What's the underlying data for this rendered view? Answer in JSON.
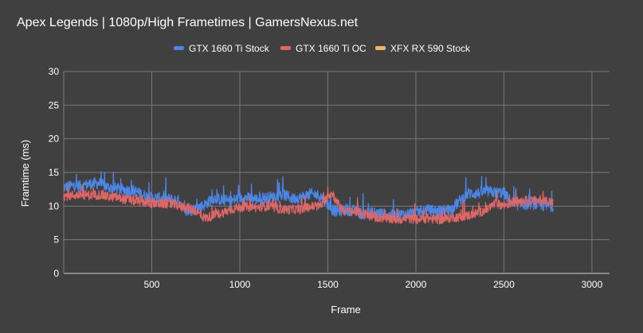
{
  "chart_data": {
    "type": "line",
    "title": "Apex Legends | 1080p/High Frametimes | GamersNexus.net",
    "xlabel": "Frame",
    "ylabel": "Framtime (ms)",
    "xlim": [
      0,
      3100
    ],
    "ylim": [
      0,
      30
    ],
    "x_ticks": [
      500,
      1000,
      1500,
      2000,
      2500,
      3000
    ],
    "y_ticks": [
      0,
      5,
      10,
      15,
      20,
      25,
      30
    ],
    "grid": true,
    "legend_position": "top",
    "background": "#404040",
    "series": [
      {
        "name": "GTX 1660 Ti Stock",
        "color": "#4a86e8",
        "noise": 0.85,
        "spike_height": 2.5,
        "points": [
          [
            0,
            12.8
          ],
          [
            50,
            13.0
          ],
          [
            100,
            13.0
          ],
          [
            150,
            13.3
          ],
          [
            200,
            13.4
          ],
          [
            250,
            12.8
          ],
          [
            300,
            12.6
          ],
          [
            350,
            12.4
          ],
          [
            400,
            12.3
          ],
          [
            450,
            11.7
          ],
          [
            500,
            11.2
          ],
          [
            550,
            11.2
          ],
          [
            600,
            11.0
          ],
          [
            650,
            10.8
          ],
          [
            680,
            9.6
          ],
          [
            700,
            9.0
          ],
          [
            720,
            9.4
          ],
          [
            750,
            9.6
          ],
          [
            800,
            10.2
          ],
          [
            850,
            11.2
          ],
          [
            900,
            10.9
          ],
          [
            950,
            10.7
          ],
          [
            1000,
            11.3
          ],
          [
            1050,
            11.2
          ],
          [
            1100,
            11.0
          ],
          [
            1150,
            11.2
          ],
          [
            1200,
            11.4
          ],
          [
            1250,
            11.7
          ],
          [
            1300,
            11.1
          ],
          [
            1350,
            11.3
          ],
          [
            1400,
            11.8
          ],
          [
            1450,
            11.6
          ],
          [
            1480,
            11.0
          ],
          [
            1500,
            10.3
          ],
          [
            1520,
            9.6
          ],
          [
            1550,
            9.2
          ],
          [
            1600,
            9.5
          ],
          [
            1650,
            9.3
          ],
          [
            1700,
            8.8
          ],
          [
            1750,
            9.0
          ],
          [
            1800,
            8.9
          ],
          [
            1850,
            8.6
          ],
          [
            1900,
            8.7
          ],
          [
            1950,
            8.8
          ],
          [
            2000,
            9.0
          ],
          [
            2050,
            9.4
          ],
          [
            2100,
            9.3
          ],
          [
            2150,
            9.3
          ],
          [
            2200,
            9.5
          ],
          [
            2250,
            10.8
          ],
          [
            2300,
            11.9
          ],
          [
            2350,
            11.9
          ],
          [
            2400,
            12.2
          ],
          [
            2450,
            12.0
          ],
          [
            2500,
            12.0
          ],
          [
            2550,
            10.3
          ],
          [
            2600,
            10.2
          ],
          [
            2650,
            10.4
          ],
          [
            2700,
            10.2
          ],
          [
            2750,
            10.0
          ],
          [
            2780,
            10.0
          ]
        ]
      },
      {
        "name": "GTX 1660 Ti OC",
        "color": "#e06666",
        "noise": 0.7,
        "spike_height": 1.8,
        "points": [
          [
            0,
            11.5
          ],
          [
            50,
            11.6
          ],
          [
            100,
            11.7
          ],
          [
            150,
            11.6
          ],
          [
            200,
            11.7
          ],
          [
            250,
            11.4
          ],
          [
            300,
            11.3
          ],
          [
            350,
            11.0
          ],
          [
            400,
            10.8
          ],
          [
            450,
            10.6
          ],
          [
            500,
            10.4
          ],
          [
            550,
            10.4
          ],
          [
            600,
            10.3
          ],
          [
            650,
            10.1
          ],
          [
            700,
            9.8
          ],
          [
            750,
            9.3
          ],
          [
            800,
            8.2
          ],
          [
            850,
            8.6
          ],
          [
            900,
            9.0
          ],
          [
            950,
            9.5
          ],
          [
            1000,
            9.8
          ],
          [
            1050,
            9.9
          ],
          [
            1100,
            9.8
          ],
          [
            1150,
            10.0
          ],
          [
            1200,
            9.7
          ],
          [
            1250,
            9.5
          ],
          [
            1300,
            9.5
          ],
          [
            1350,
            9.6
          ],
          [
            1400,
            9.9
          ],
          [
            1450,
            10.0
          ],
          [
            1480,
            10.6
          ],
          [
            1500,
            11.8
          ],
          [
            1530,
            11.8
          ],
          [
            1550,
            10.5
          ],
          [
            1580,
            9.6
          ],
          [
            1600,
            9.2
          ],
          [
            1650,
            9.3
          ],
          [
            1700,
            8.8
          ],
          [
            1750,
            8.4
          ],
          [
            1800,
            8.3
          ],
          [
            1850,
            8.1
          ],
          [
            1900,
            8.0
          ],
          [
            1950,
            8.2
          ],
          [
            2000,
            8.0
          ],
          [
            2050,
            8.2
          ],
          [
            2100,
            8.1
          ],
          [
            2150,
            8.0
          ],
          [
            2200,
            8.3
          ],
          [
            2250,
            8.4
          ],
          [
            2300,
            8.6
          ],
          [
            2350,
            9.0
          ],
          [
            2400,
            9.4
          ],
          [
            2450,
            10.4
          ],
          [
            2500,
            10.1
          ],
          [
            2550,
            10.6
          ],
          [
            2600,
            10.8
          ],
          [
            2650,
            10.7
          ],
          [
            2700,
            10.8
          ],
          [
            2750,
            10.8
          ],
          [
            2780,
            10.5
          ]
        ]
      },
      {
        "name": "XFX RX 590 Stock",
        "color": "#f6b26b",
        "noise": 0,
        "spike_height": 0,
        "points": []
      }
    ]
  }
}
